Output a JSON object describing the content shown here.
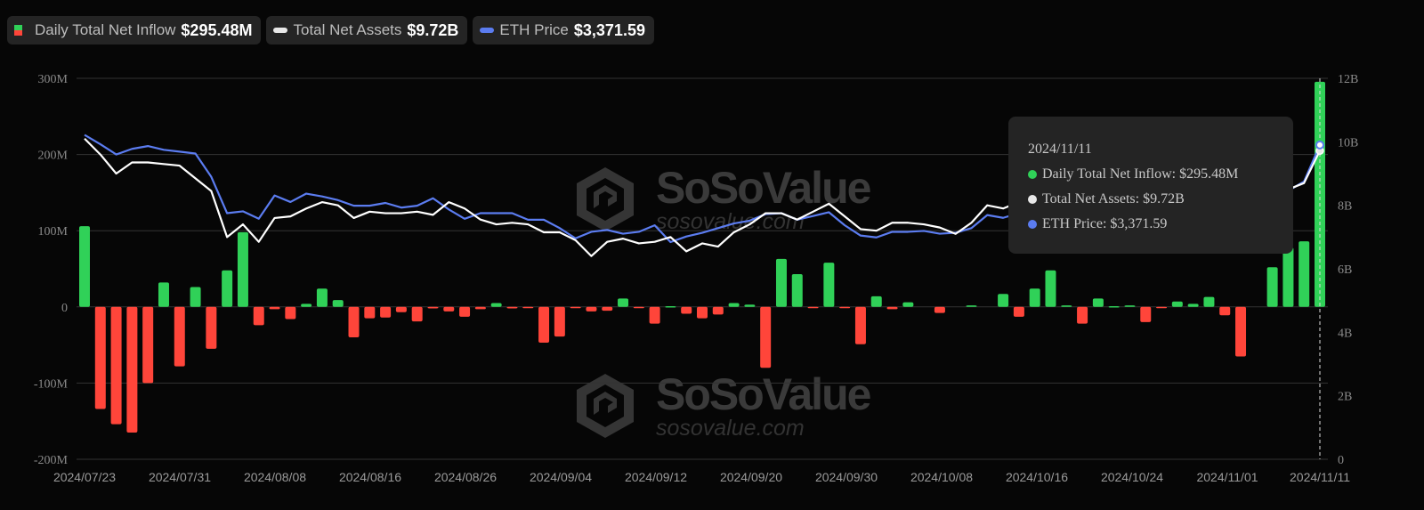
{
  "legend": {
    "inflow": {
      "label": "Daily Total Net Inflow",
      "value": "$295.48M"
    },
    "assets": {
      "label": "Total Net Assets",
      "value": "$9.72B"
    },
    "eth": {
      "label": "ETH Price",
      "value": "$3,371.59"
    }
  },
  "tooltip": {
    "date": "2024/11/11",
    "inflow": "Daily Total Net Inflow: $295.48M",
    "assets": "Total Net Assets: $9.72B",
    "eth": "ETH Price: $3,371.59"
  },
  "watermark": {
    "brand": "SoSoValue",
    "url": "sosovalue.com"
  },
  "colors": {
    "positive": "#30d158",
    "negative": "#ff453a",
    "assets_line": "#ffffff",
    "eth_line": "#5b7cf0",
    "tooltip_bg": "#242424"
  },
  "chart_data": {
    "type": "bar",
    "title": "",
    "left_axis": {
      "ticks": [
        "300M",
        "200M",
        "100M",
        "0",
        "-100M",
        "-200M"
      ],
      "ylim": [
        -200,
        300
      ],
      "unit": "USD millions"
    },
    "right_axis": {
      "ticks": [
        "12B",
        "10B",
        "8B",
        "6B",
        "4B",
        "2B",
        "0"
      ],
      "ylim": [
        0,
        12
      ],
      "unit": "USD billions"
    },
    "x_tick_labels": [
      "2024/07/23",
      "2024/07/31",
      "2024/08/08",
      "2024/08/16",
      "2024/08/26",
      "2024/09/04",
      "2024/09/12",
      "2024/09/20",
      "2024/09/30",
      "2024/10/08",
      "2024/10/16",
      "2024/10/24",
      "2024/11/01",
      "2024/11/11"
    ],
    "grid": true,
    "legend_position": "top-left",
    "series": [
      {
        "name": "Daily Total Net Inflow",
        "type": "bar",
        "axis": "left",
        "unit": "M",
        "values": [
          106,
          -134,
          -154,
          -165,
          -100,
          32,
          -78,
          26,
          -55,
          48,
          98,
          -24,
          -3,
          -16,
          4,
          24,
          9,
          -40,
          -15,
          -14,
          -7,
          -19,
          -2,
          -6,
          -13,
          -3,
          5,
          -2,
          -1,
          -47,
          -39,
          -1,
          -6,
          -5,
          11,
          -1,
          -22,
          1,
          -9,
          -15,
          -10,
          5,
          3,
          -80,
          63,
          43,
          -1,
          58,
          -1,
          -49,
          14,
          -3,
          6,
          0,
          -8,
          0,
          2,
          0,
          17,
          -13,
          24,
          48,
          2,
          -22,
          11,
          1,
          2,
          -20,
          -1,
          7,
          4,
          13,
          -11,
          -65,
          0,
          52,
          78,
          86,
          295.48
        ]
      },
      {
        "name": "Total Net Assets",
        "type": "line",
        "axis": "right",
        "unit": "B",
        "values": [
          10.1,
          9.6,
          9.0,
          9.35,
          9.35,
          9.3,
          9.25,
          8.85,
          8.45,
          7.0,
          7.4,
          6.85,
          7.6,
          7.65,
          7.9,
          8.1,
          8.0,
          7.6,
          7.8,
          7.75,
          7.75,
          7.8,
          7.7,
          8.1,
          7.9,
          7.55,
          7.4,
          7.45,
          7.4,
          7.15,
          7.15,
          6.9,
          6.4,
          6.85,
          6.95,
          6.8,
          6.85,
          7.0,
          6.55,
          6.8,
          6.7,
          7.15,
          7.4,
          7.75,
          7.75,
          7.55,
          7.8,
          8.05,
          7.65,
          7.25,
          7.2,
          7.45,
          7.45,
          7.4,
          7.3,
          7.1,
          7.45,
          8.0,
          7.9,
          8.1,
          8.4,
          8.5,
          8.3,
          8.5,
          8.6,
          8.5,
          8.4,
          8.5,
          8.6,
          8.4,
          8.6,
          8.7,
          8.5,
          8.4,
          8.3,
          8.35,
          8.5,
          8.7,
          9.72
        ]
      },
      {
        "name": "ETH Price",
        "type": "line",
        "axis": "right",
        "unit": "USD",
        "values": [
          3480,
          3380,
          3270,
          3330,
          3360,
          3320,
          3300,
          3280,
          3030,
          2640,
          2660,
          2580,
          2830,
          2760,
          2850,
          2820,
          2780,
          2720,
          2720,
          2750,
          2700,
          2720,
          2800,
          2680,
          2580,
          2640,
          2640,
          2640,
          2570,
          2570,
          2480,
          2370,
          2440,
          2460,
          2420,
          2440,
          2510,
          2330,
          2390,
          2430,
          2480,
          2530,
          2560,
          2630,
          2640,
          2570,
          2610,
          2650,
          2510,
          2400,
          2380,
          2440,
          2440,
          2450,
          2420,
          2430,
          2480,
          2620,
          2590,
          2640,
          2700,
          2780,
          2750,
          2800,
          2610,
          2650,
          2600,
          2550,
          2590,
          2560,
          2600,
          2620,
          2560,
          2460,
          2500,
          2700,
          2880,
          2980,
          3371.59
        ]
      }
    ],
    "highlighted_point": {
      "date": "2024/11/11",
      "inflow": "295.48M",
      "total_net_assets": "9.72B",
      "eth_price": "3,371.59"
    }
  }
}
